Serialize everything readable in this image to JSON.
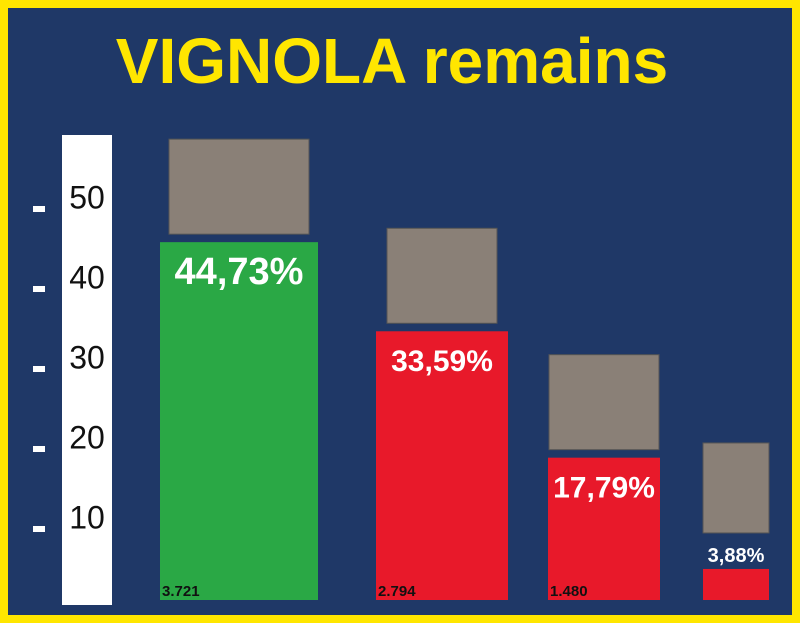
{
  "chart_data": {
    "type": "bar",
    "title": "VIGNOLA remains",
    "categories": [
      null,
      null,
      null,
      null
    ],
    "values": [
      44.73,
      33.59,
      17.79,
      3.88
    ],
    "value_labels": [
      "44,73%",
      "33,59%",
      "17,79%",
      "3,88%"
    ],
    "vote_labels": [
      "3.721",
      "2.794",
      "1.480",
      null
    ],
    "colors": [
      "#2aa845",
      "#e8192a",
      "#e8192a",
      "#e8192a"
    ],
    "ylim": [
      0,
      57.5
    ],
    "yticks": [
      10,
      20,
      30,
      40,
      50
    ]
  }
}
